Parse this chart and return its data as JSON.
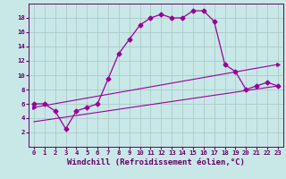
{
  "xlabel": "Windchill (Refroidissement éolien,°C)",
  "x_ticks": [
    0,
    1,
    2,
    3,
    4,
    5,
    6,
    7,
    8,
    9,
    10,
    11,
    12,
    13,
    14,
    15,
    16,
    17,
    18,
    19,
    20,
    21,
    22,
    23
  ],
  "ylim": [
    0,
    20
  ],
  "xlim": [
    -0.5,
    23.5
  ],
  "yticks": [
    2,
    4,
    6,
    8,
    10,
    12,
    14,
    16,
    18
  ],
  "line1_x": [
    0,
    1,
    2,
    3,
    4,
    5,
    6,
    7,
    8,
    9,
    10,
    11,
    12,
    13,
    14,
    15,
    16,
    17,
    18,
    19,
    20,
    21,
    22,
    23
  ],
  "line1_y": [
    6,
    6,
    5,
    2.5,
    5,
    5.5,
    6,
    9.5,
    13,
    15,
    17,
    18,
    18.5,
    18,
    18,
    19,
    19,
    17.5,
    11.5,
    10.5,
    8,
    8.5,
    9,
    8.5
  ],
  "line2_x": [
    0,
    23
  ],
  "line2_y": [
    5.5,
    11.5
  ],
  "line3_x": [
    0,
    23
  ],
  "line3_y": [
    3.5,
    8.5
  ],
  "line_color": "#990099",
  "bg_color": "#c8e8e8",
  "grid_color": "#b0c8c8",
  "font_color": "#660066",
  "tick_fontsize": 5.2,
  "label_fontsize": 6.5
}
